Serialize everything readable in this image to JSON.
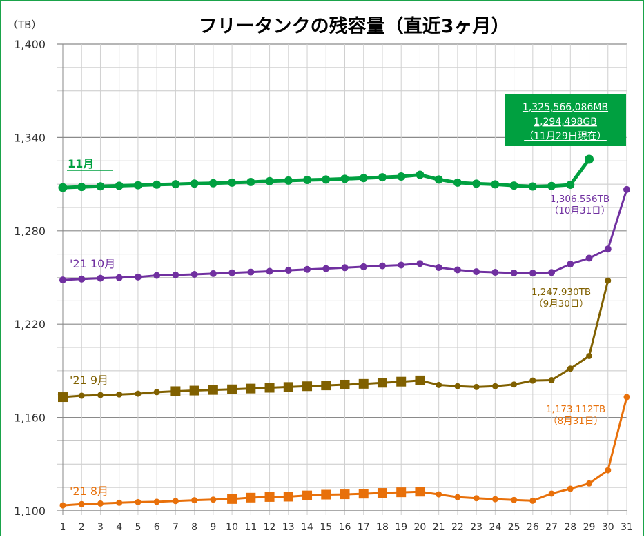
{
  "chart_data": {
    "type": "line",
    "title": "フリータンクの残容量（直近3ヶ月）",
    "ylabel": "（TB）",
    "xlabel": "",
    "ylim": [
      1100,
      1400
    ],
    "y_major_ticks": [
      1100,
      1160,
      1220,
      1280,
      1340,
      1400
    ],
    "y_tick_labels": [
      "1,100",
      "1,160",
      "1,220",
      "1,280",
      "1,340",
      "1,400"
    ],
    "y_minor_step": 15,
    "x": [
      1,
      2,
      3,
      4,
      5,
      6,
      7,
      8,
      9,
      10,
      11,
      12,
      13,
      14,
      15,
      16,
      17,
      18,
      19,
      20,
      21,
      22,
      23,
      24,
      25,
      26,
      27,
      28,
      29,
      30,
      31
    ],
    "x_tick_labels": [
      "1",
      "2",
      "3",
      "4",
      "5",
      "6",
      "7",
      "8",
      "9",
      "10",
      "11",
      "12",
      "13",
      "14",
      "15",
      "16",
      "17",
      "18",
      "19",
      "20",
      "21",
      "22",
      "23",
      "24",
      "25",
      "26",
      "27",
      "28",
      "29",
      "30",
      "31"
    ],
    "grid": true,
    "series": [
      {
        "name": "11月",
        "label": "11月",
        "color": "#00a040",
        "marker": "circle",
        "values": [
          1307.8,
          1308.2,
          1308.6,
          1309.0,
          1309.3,
          1309.7,
          1310.0,
          1310.4,
          1310.6,
          1311.0,
          1311.4,
          1311.9,
          1312.3,
          1312.7,
          1313.0,
          1313.4,
          1313.9,
          1314.4,
          1314.9,
          1316.0,
          1313.0,
          1311.0,
          1310.3,
          1309.9,
          1309.1,
          1308.5,
          1308.8,
          1309.6,
          1326.0,
          null,
          null
        ],
        "end_label": null
      },
      {
        "name": "'21 10月",
        "label": "'21 10月",
        "color": "#7030a0",
        "marker": "circle",
        "values": [
          1248.4,
          1249.0,
          1249.5,
          1249.9,
          1250.3,
          1251.3,
          1251.6,
          1252.0,
          1252.5,
          1253.0,
          1253.5,
          1254.0,
          1254.6,
          1255.2,
          1255.7,
          1256.3,
          1256.9,
          1257.5,
          1258.0,
          1259.0,
          1256.4,
          1254.9,
          1253.7,
          1253.3,
          1252.9,
          1252.8,
          1253.2,
          1258.6,
          1262.4,
          1268.3,
          1306.556
        ],
        "end_label": {
          "value": "1,306.556TB",
          "date": "（10月31日）"
        }
      },
      {
        "name": "'21 9月",
        "label": "'21 9月",
        "color": "#806000",
        "marker": "square",
        "marker_days_small": [
          2,
          3,
          4,
          5,
          6,
          21,
          22,
          23,
          24,
          25,
          26,
          27,
          28,
          29,
          30
        ],
        "values": [
          1173.1,
          1174.0,
          1174.4,
          1174.8,
          1175.3,
          1176.3,
          1176.9,
          1177.3,
          1177.7,
          1178.1,
          1178.6,
          1179.1,
          1179.6,
          1180.1,
          1180.6,
          1181.1,
          1181.6,
          1182.3,
          1183.0,
          1183.8,
          1180.9,
          1180.1,
          1179.6,
          1180.1,
          1181.2,
          1183.7,
          1184.0,
          1191.4,
          1199.5,
          1247.93,
          null
        ],
        "end_label": {
          "value": "1,247.930TB",
          "date": "（9月30日）"
        }
      },
      {
        "name": "'21 8月",
        "label": "'21 8月",
        "color": "#e8700a",
        "marker": "square",
        "values": [
          1103.5,
          1104.3,
          1104.7,
          1105.2,
          1105.6,
          1105.8,
          1106.3,
          1106.8,
          1107.2,
          1107.6,
          1108.5,
          1108.9,
          1109.1,
          1109.9,
          1110.4,
          1110.6,
          1111.0,
          1111.5,
          1111.9,
          1112.3,
          1110.6,
          1108.8,
          1108.1,
          1107.5,
          1107.0,
          1106.5,
          1111.1,
          1114.2,
          1117.6,
          1126.1,
          1173.112
        ],
        "end_label": {
          "value": "1,173.112TB",
          "date": "（8月31日）"
        }
      }
    ],
    "callout": {
      "lines": [
        "1,325,566,086MB",
        "1,294,498GB",
        "（11月29日現在）"
      ],
      "background": "#00a040",
      "text_color": "#ffffff"
    }
  }
}
